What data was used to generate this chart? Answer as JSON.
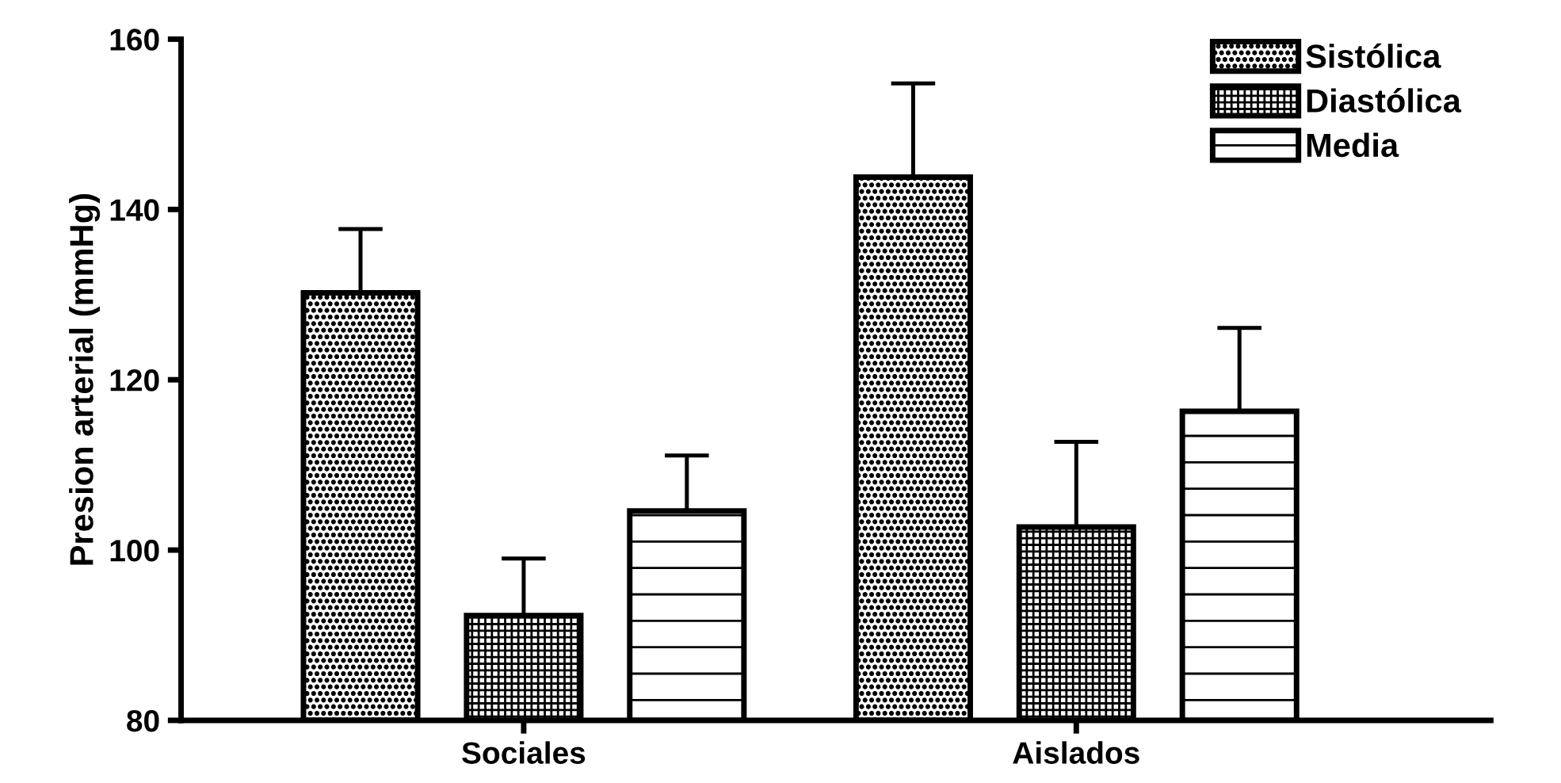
{
  "chart_data": {
    "type": "bar",
    "ylabel": "Presion arterial (mmHg)",
    "categories": [
      "Sociales",
      "Aislados"
    ],
    "series": [
      {
        "name": "Sistólica",
        "color": "#000000",
        "values": [
          130.2,
          143.8
        ],
        "errors": [
          [
            130.2,
            137.7
          ],
          [
            143.8,
            154.8
          ]
        ]
      },
      {
        "name": "Diastólica",
        "color": "#000000",
        "values": [
          92.3,
          102.7
        ],
        "errors": [
          [
            92.3,
            99.0
          ],
          [
            102.7,
            112.7
          ]
        ]
      },
      {
        "name": "Media",
        "color": "#000000",
        "values": [
          104.6,
          116.3
        ],
        "errors": [
          [
            104.6,
            111.1
          ],
          [
            116.3,
            126.1
          ]
        ]
      }
    ],
    "ylim": [
      80,
      160
    ],
    "yticks": [
      80,
      100,
      120,
      140,
      160
    ],
    "grid": false,
    "legend": "top right"
  }
}
